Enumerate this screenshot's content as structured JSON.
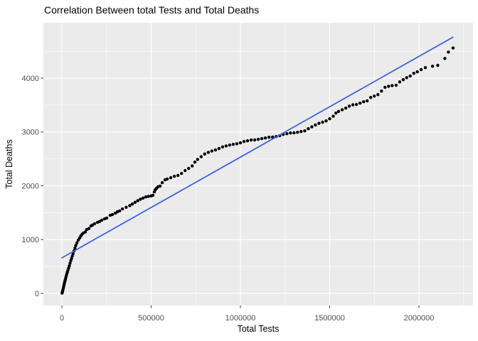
{
  "chart_data": {
    "type": "scatter",
    "title": "Correlation Between total Tests and Total Deaths",
    "xlabel": "Total Tests",
    "ylabel": "Total Deaths",
    "legend": "none",
    "grid": "on",
    "xlim": [
      -103600,
      2302800
    ],
    "ylim": [
      -225,
      5030
    ],
    "x_ticks": [
      {
        "value": 0,
        "label": "0"
      },
      {
        "value": 500000,
        "label": "500000"
      },
      {
        "value": 1000000,
        "label": "1000000"
      },
      {
        "value": 1500000,
        "label": "1500000"
      },
      {
        "value": 2000000,
        "label": "2000000"
      }
    ],
    "y_ticks": [
      {
        "value": 0,
        "label": "0"
      },
      {
        "value": 1000,
        "label": "1000"
      },
      {
        "value": 2000,
        "label": "2000"
      },
      {
        "value": 3000,
        "label": "3000"
      },
      {
        "value": 4000,
        "label": "4000"
      }
    ],
    "x_minor": [
      250000,
      750000,
      1250000,
      1750000,
      2250000
    ],
    "y_minor": [
      500,
      1500,
      2500,
      3500,
      4500
    ],
    "trend_line": {
      "x1": 0,
      "y1": 660,
      "x2": 2190000,
      "y2": 4760
    },
    "colors": {
      "panel_bg": "#ebebeb",
      "grid": "#ffffff",
      "point": "#000000",
      "trend": "#3a64e0",
      "tick_label": "#4d4d4d",
      "tick_mark": "#333333",
      "title": "#000000"
    },
    "points": [
      [
        1000,
        5
      ],
      [
        3000,
        30
      ],
      [
        5000,
        55
      ],
      [
        7000,
        85
      ],
      [
        9000,
        115
      ],
      [
        11000,
        145
      ],
      [
        13000,
        175
      ],
      [
        15000,
        205
      ],
      [
        17000,
        230
      ],
      [
        19000,
        255
      ],
      [
        22000,
        292
      ],
      [
        25000,
        330
      ],
      [
        28000,
        368
      ],
      [
        31000,
        400
      ],
      [
        34000,
        430
      ],
      [
        38000,
        470
      ],
      [
        42000,
        512
      ],
      [
        46000,
        560
      ],
      [
        50000,
        610
      ],
      [
        54000,
        650
      ],
      [
        58000,
        692
      ],
      [
        63000,
        735
      ],
      [
        68000,
        790
      ],
      [
        73000,
        840
      ],
      [
        78000,
        890
      ],
      [
        84000,
        940
      ],
      [
        92000,
        990
      ],
      [
        100000,
        1030
      ],
      [
        106000,
        1068
      ],
      [
        112000,
        1095
      ],
      [
        120000,
        1121
      ],
      [
        131000,
        1140
      ],
      [
        139000,
        1187
      ],
      [
        151000,
        1205
      ],
      [
        163000,
        1253
      ],
      [
        171000,
        1270
      ],
      [
        183000,
        1295
      ],
      [
        199000,
        1320
      ],
      [
        211000,
        1335
      ],
      [
        223000,
        1360
      ],
      [
        239000,
        1385
      ],
      [
        251000,
        1400
      ],
      [
        271000,
        1451
      ],
      [
        283000,
        1465
      ],
      [
        299000,
        1490
      ],
      [
        311000,
        1517
      ],
      [
        323000,
        1532
      ],
      [
        339000,
        1570
      ],
      [
        360000,
        1600
      ],
      [
        380000,
        1632
      ],
      [
        395000,
        1660
      ],
      [
        410000,
        1692
      ],
      [
        425000,
        1722
      ],
      [
        440000,
        1750
      ],
      [
        455000,
        1772
      ],
      [
        470000,
        1792
      ],
      [
        485000,
        1802
      ],
      [
        500000,
        1812
      ],
      [
        510000,
        1822
      ],
      [
        518000,
        1886
      ],
      [
        523000,
        1926
      ],
      [
        530000,
        1952
      ],
      [
        538000,
        1980
      ],
      [
        550000,
        1995
      ],
      [
        562000,
        2058
      ],
      [
        578000,
        2111
      ],
      [
        590000,
        2125
      ],
      [
        610000,
        2150
      ],
      [
        630000,
        2177
      ],
      [
        650000,
        2192
      ],
      [
        670000,
        2230
      ],
      [
        690000,
        2282
      ],
      [
        710000,
        2322
      ],
      [
        730000,
        2368
      ],
      [
        745000,
        2440
      ],
      [
        760000,
        2490
      ],
      [
        780000,
        2540
      ],
      [
        800000,
        2590
      ],
      [
        820000,
        2620
      ],
      [
        840000,
        2645
      ],
      [
        860000,
        2665
      ],
      [
        880000,
        2692
      ],
      [
        900000,
        2722
      ],
      [
        920000,
        2740
      ],
      [
        940000,
        2757
      ],
      [
        960000,
        2770
      ],
      [
        980000,
        2782
      ],
      [
        1000000,
        2797
      ],
      [
        1020000,
        2823
      ],
      [
        1040000,
        2836
      ],
      [
        1060000,
        2850
      ],
      [
        1080000,
        2852
      ],
      [
        1100000,
        2863
      ],
      [
        1120000,
        2876
      ],
      [
        1140000,
        2889
      ],
      [
        1160000,
        2902
      ],
      [
        1180000,
        2904
      ],
      [
        1200000,
        2915
      ],
      [
        1220000,
        2929
      ],
      [
        1240000,
        2955
      ],
      [
        1260000,
        2968
      ],
      [
        1280000,
        2981
      ],
      [
        1300000,
        2983
      ],
      [
        1320000,
        2994
      ],
      [
        1340000,
        3007
      ],
      [
        1360000,
        3020
      ],
      [
        1380000,
        3060
      ],
      [
        1400000,
        3095
      ],
      [
        1420000,
        3130
      ],
      [
        1440000,
        3160
      ],
      [
        1460000,
        3182
      ],
      [
        1480000,
        3205
      ],
      [
        1500000,
        3245
      ],
      [
        1520000,
        3292
      ],
      [
        1535000,
        3350
      ],
      [
        1550000,
        3382
      ],
      [
        1570000,
        3412
      ],
      [
        1590000,
        3443
      ],
      [
        1610000,
        3480
      ],
      [
        1630000,
        3505
      ],
      [
        1650000,
        3512
      ],
      [
        1670000,
        3536
      ],
      [
        1690000,
        3562
      ],
      [
        1710000,
        3578
      ],
      [
        1730000,
        3641
      ],
      [
        1750000,
        3667
      ],
      [
        1770000,
        3694
      ],
      [
        1790000,
        3760
      ],
      [
        1810000,
        3830
      ],
      [
        1830000,
        3850
      ],
      [
        1850000,
        3862
      ],
      [
        1872000,
        3868
      ],
      [
        1892000,
        3930
      ],
      [
        1912000,
        3972
      ],
      [
        1931000,
        4010
      ],
      [
        1951000,
        4040
      ],
      [
        1971000,
        4090
      ],
      [
        1991000,
        4118
      ],
      [
        2012000,
        4160
      ],
      [
        2036000,
        4196
      ],
      [
        2076000,
        4222
      ],
      [
        2105000,
        4238
      ],
      [
        2145000,
        4366
      ],
      [
        2165000,
        4485
      ],
      [
        2191000,
        4560
      ]
    ]
  }
}
